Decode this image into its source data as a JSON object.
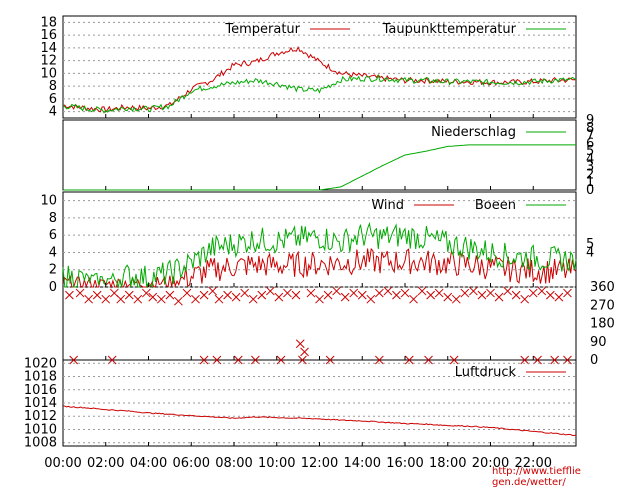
{
  "footer_url": "http://www.tiefflie gen.de/wetter/",
  "colors": {
    "red": "#cc0000",
    "green": "#00aa00",
    "grid": "#9a9a9a"
  },
  "chart_data": [
    {
      "type": "line",
      "panel": "temperature",
      "title": "",
      "x": [
        "00:00",
        "01:00",
        "02:00",
        "03:00",
        "04:00",
        "05:00",
        "06:00",
        "07:00",
        "08:00",
        "09:00",
        "10:00",
        "11:00",
        "12:00",
        "13:00",
        "14:00",
        "15:00",
        "16:00",
        "17:00",
        "18:00",
        "19:00",
        "20:00",
        "21:00",
        "22:00",
        "23:00",
        "24:00"
      ],
      "series": [
        {
          "name": "Temperatur",
          "color": "#cc0000",
          "values": [
            5.0,
            4.6,
            4.3,
            4.7,
            4.5,
            5.0,
            7.5,
            9.0,
            11.3,
            11.8,
            13.2,
            14.0,
            11.8,
            10.0,
            9.6,
            9.2,
            8.9,
            8.9,
            8.7,
            8.7,
            8.6,
            8.6,
            8.7,
            8.9,
            9.0
          ]
        },
        {
          "name": "Taupunkttemperatur",
          "color": "#00aa00",
          "values": [
            4.9,
            4.5,
            4.2,
            4.6,
            4.4,
            4.9,
            7.3,
            8.0,
            8.5,
            8.9,
            8.4,
            7.5,
            7.3,
            9.0,
            9.2,
            9.2,
            8.9,
            8.9,
            8.7,
            8.7,
            8.6,
            8.6,
            8.7,
            8.9,
            9.0
          ]
        }
      ],
      "y_ticks": [
        4,
        6,
        8,
        10,
        12,
        14,
        16,
        18
      ],
      "ylim": [
        3,
        19
      ],
      "legend": "top-right"
    },
    {
      "type": "line",
      "panel": "precipitation",
      "series": [
        {
          "name": "Niederschlag",
          "color": "#00aa00",
          "values": [
            0,
            0,
            0,
            0,
            0,
            0,
            0,
            0,
            0,
            0,
            0,
            0,
            0,
            0.4,
            1.8,
            3.2,
            4.5,
            5.0,
            5.6,
            5.8,
            5.8,
            5.8,
            5.8,
            5.8,
            5.8
          ]
        }
      ],
      "x": [
        "00:00",
        "01:00",
        "02:00",
        "03:00",
        "04:00",
        "05:00",
        "06:00",
        "07:00",
        "08:00",
        "09:00",
        "10:00",
        "11:00",
        "12:00",
        "13:00",
        "14:00",
        "15:00",
        "16:00",
        "17:00",
        "18:00",
        "19:00",
        "20:00",
        "21:00",
        "22:00",
        "23:00",
        "24:00"
      ],
      "y_ticks_right": [
        0,
        1,
        2,
        3,
        4,
        5,
        6,
        7,
        8,
        9
      ],
      "ylim": [
        0,
        9
      ],
      "legend": "top-right"
    },
    {
      "type": "line",
      "panel": "wind",
      "series": [
        {
          "name": "Wind",
          "color": "#cc0000",
          "values": [
            0.5,
            0.4,
            0.3,
            0.5,
            0.4,
            0.6,
            1.2,
            2.0,
            2.4,
            2.6,
            2.5,
            2.6,
            2.7,
            2.8,
            3.0,
            2.9,
            3.0,
            2.9,
            2.7,
            2.6,
            2.3,
            2.0,
            1.9,
            1.8,
            1.8
          ]
        },
        {
          "name": "Boeen",
          "color": "#00aa00",
          "values": [
            1.2,
            1.0,
            0.8,
            1.3,
            1.1,
            1.6,
            2.8,
            4.5,
            5.0,
            5.5,
            5.3,
            5.6,
            5.8,
            5.2,
            6.0,
            5.8,
            6.0,
            5.6,
            5.0,
            4.6,
            4.0,
            3.5,
            3.4,
            3.2,
            3.2
          ]
        }
      ],
      "x": [
        "00:00",
        "01:00",
        "02:00",
        "03:00",
        "04:00",
        "05:00",
        "06:00",
        "07:00",
        "08:00",
        "09:00",
        "10:00",
        "11:00",
        "12:00",
        "13:00",
        "14:00",
        "15:00",
        "16:00",
        "17:00",
        "18:00",
        "19:00",
        "20:00",
        "21:00",
        "22:00",
        "23:00",
        "24:00"
      ],
      "y_ticks": [
        0,
        2,
        4,
        6,
        8,
        10
      ],
      "y_ticks_right": [
        4,
        5
      ],
      "ylim": [
        0,
        11
      ],
      "legend": "top-right"
    },
    {
      "type": "scatter",
      "panel": "wind_direction",
      "marker": "x",
      "color": "#cc0000",
      "y_ticks_right": [
        0,
        90,
        180,
        270,
        360
      ],
      "ylim": [
        0,
        360
      ],
      "points": [
        [
          0.3,
          320
        ],
        [
          0.8,
          330
        ],
        [
          1.2,
          300
        ],
        [
          1.6,
          320
        ],
        [
          2.0,
          300
        ],
        [
          2.4,
          330
        ],
        [
          2.7,
          300
        ],
        [
          3.1,
          320
        ],
        [
          3.5,
          300
        ],
        [
          3.9,
          330
        ],
        [
          4.2,
          310
        ],
        [
          4.6,
          300
        ],
        [
          5.0,
          320
        ],
        [
          5.4,
          290
        ],
        [
          5.8,
          330
        ],
        [
          6.2,
          300
        ],
        [
          6.6,
          320
        ],
        [
          7.0,
          340
        ],
        [
          7.3,
          300
        ],
        [
          7.7,
          320
        ],
        [
          8.1,
          310
        ],
        [
          8.5,
          330
        ],
        [
          8.9,
          300
        ],
        [
          9.3,
          320
        ],
        [
          9.7,
          340
        ],
        [
          10.1,
          310
        ],
        [
          10.5,
          330
        ],
        [
          10.9,
          320
        ],
        [
          11.1,
          80
        ],
        [
          11.3,
          40
        ],
        [
          11.6,
          330
        ],
        [
          12.0,
          300
        ],
        [
          12.4,
          320
        ],
        [
          12.8,
          340
        ],
        [
          13.2,
          310
        ],
        [
          13.6,
          330
        ],
        [
          14.0,
          320
        ],
        [
          14.4,
          300
        ],
        [
          14.8,
          330
        ],
        [
          15.2,
          340
        ],
        [
          15.6,
          320
        ],
        [
          16.0,
          330
        ],
        [
          16.4,
          300
        ],
        [
          16.8,
          340
        ],
        [
          17.2,
          320
        ],
        [
          17.6,
          330
        ],
        [
          18.0,
          310
        ],
        [
          18.4,
          300
        ],
        [
          18.8,
          330
        ],
        [
          19.2,
          340
        ],
        [
          19.6,
          320
        ],
        [
          20.0,
          330
        ],
        [
          20.4,
          310
        ],
        [
          20.8,
          340
        ],
        [
          21.2,
          320
        ],
        [
          21.6,
          300
        ],
        [
          22.0,
          330
        ],
        [
          22.4,
          340
        ],
        [
          22.8,
          320
        ],
        [
          23.2,
          310
        ],
        [
          23.6,
          330
        ],
        [
          0.5,
          0
        ],
        [
          2.3,
          0
        ],
        [
          6.6,
          0
        ],
        [
          7.2,
          0
        ],
        [
          8.2,
          0
        ],
        [
          9.0,
          0
        ],
        [
          10.2,
          0
        ],
        [
          11.2,
          0
        ],
        [
          12.5,
          0
        ],
        [
          14.8,
          0
        ],
        [
          16.2,
          0
        ],
        [
          17.1,
          0
        ],
        [
          18.3,
          0
        ],
        [
          21.6,
          0
        ],
        [
          22.2,
          0
        ],
        [
          23.0,
          0
        ],
        [
          23.6,
          0
        ]
      ]
    },
    {
      "type": "line",
      "panel": "pressure",
      "series": [
        {
          "name": "Luftdruck",
          "color": "#cc0000",
          "values": [
            1013.5,
            1013.3,
            1013.0,
            1012.8,
            1012.5,
            1012.3,
            1012.1,
            1011.9,
            1011.7,
            1011.9,
            1011.8,
            1011.7,
            1011.6,
            1011.4,
            1011.3,
            1011.1,
            1010.9,
            1010.8,
            1010.6,
            1010.5,
            1010.3,
            1010.0,
            1009.7,
            1009.4,
            1009.1
          ]
        }
      ],
      "x": [
        "00:00",
        "01:00",
        "02:00",
        "03:00",
        "04:00",
        "05:00",
        "06:00",
        "07:00",
        "08:00",
        "09:00",
        "10:00",
        "11:00",
        "12:00",
        "13:00",
        "14:00",
        "15:00",
        "16:00",
        "17:00",
        "18:00",
        "19:00",
        "20:00",
        "21:00",
        "22:00",
        "23:00",
        "24:00"
      ],
      "y_ticks": [
        1008,
        1010,
        1012,
        1014,
        1016,
        1018,
        1020
      ],
      "ylim": [
        1007.5,
        1020.5
      ],
      "legend": "top-right"
    }
  ],
  "x_tick_labels": [
    "00:00",
    "02:00",
    "04:00",
    "06:00",
    "08:00",
    "10:00",
    "12:00",
    "14:00",
    "16:00",
    "18:00",
    "20:00",
    "22:00"
  ]
}
